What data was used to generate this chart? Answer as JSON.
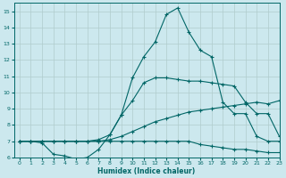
{
  "xlabel": "Humidex (Indice chaleur)",
  "bg_color": "#cce8ee",
  "grid_color": "#b0cccc",
  "line_color": "#006666",
  "xlim": [
    -0.5,
    23
  ],
  "ylim": [
    6,
    15.5
  ],
  "xticks": [
    0,
    1,
    2,
    3,
    4,
    5,
    6,
    7,
    8,
    9,
    10,
    11,
    12,
    13,
    14,
    15,
    16,
    17,
    18,
    19,
    20,
    21,
    22,
    23
  ],
  "yticks": [
    6,
    7,
    8,
    9,
    10,
    11,
    12,
    13,
    14,
    15
  ],
  "line_main_x": [
    0,
    1,
    2,
    3,
    4,
    5,
    6,
    7,
    8,
    9,
    10,
    11,
    12,
    13,
    14,
    15,
    16,
    17,
    18,
    19,
    20,
    21,
    22,
    23
  ],
  "line_main_y": [
    7.0,
    7.0,
    7.0,
    7.0,
    7.0,
    7.0,
    7.0,
    7.1,
    7.4,
    8.6,
    10.9,
    12.2,
    13.1,
    14.8,
    15.2,
    13.7,
    12.6,
    12.2,
    9.4,
    8.7,
    8.7,
    7.3,
    7.0,
    7.0
  ],
  "line_upper_x": [
    0,
    1,
    2,
    3,
    4,
    5,
    6,
    7,
    8,
    9,
    10,
    11,
    12,
    13,
    14,
    15,
    16,
    17,
    18,
    19,
    20,
    21,
    22,
    23
  ],
  "line_upper_y": [
    7.0,
    7.0,
    7.0,
    7.0,
    7.0,
    7.0,
    7.0,
    7.0,
    7.1,
    7.3,
    7.6,
    7.9,
    8.2,
    8.4,
    8.6,
    8.8,
    8.9,
    9.0,
    9.1,
    9.2,
    9.3,
    9.4,
    9.3,
    9.5
  ],
  "line_lower_x": [
    0,
    1,
    2,
    3,
    4,
    5,
    6,
    7,
    8,
    9,
    10,
    11,
    12,
    13,
    14,
    15,
    16,
    17,
    18,
    19,
    20,
    21,
    22,
    23
  ],
  "line_lower_y": [
    7.0,
    7.0,
    6.9,
    6.2,
    6.1,
    5.9,
    6.0,
    6.5,
    7.4,
    8.6,
    9.5,
    10.6,
    10.9,
    10.9,
    10.8,
    10.7,
    10.7,
    10.6,
    10.5,
    10.4,
    9.4,
    8.7,
    8.7,
    7.3
  ],
  "line_flat_x": [
    0,
    1,
    2,
    3,
    4,
    5,
    6,
    7,
    8,
    9,
    10,
    11,
    12,
    13,
    14,
    15,
    16,
    17,
    18,
    19,
    20,
    21,
    22,
    23
  ],
  "line_flat_y": [
    7.0,
    7.0,
    7.0,
    7.0,
    7.0,
    7.0,
    7.0,
    7.0,
    7.0,
    7.0,
    7.0,
    7.0,
    7.0,
    7.0,
    7.0,
    7.0,
    6.8,
    6.7,
    6.6,
    6.5,
    6.5,
    6.4,
    6.3,
    6.3
  ]
}
